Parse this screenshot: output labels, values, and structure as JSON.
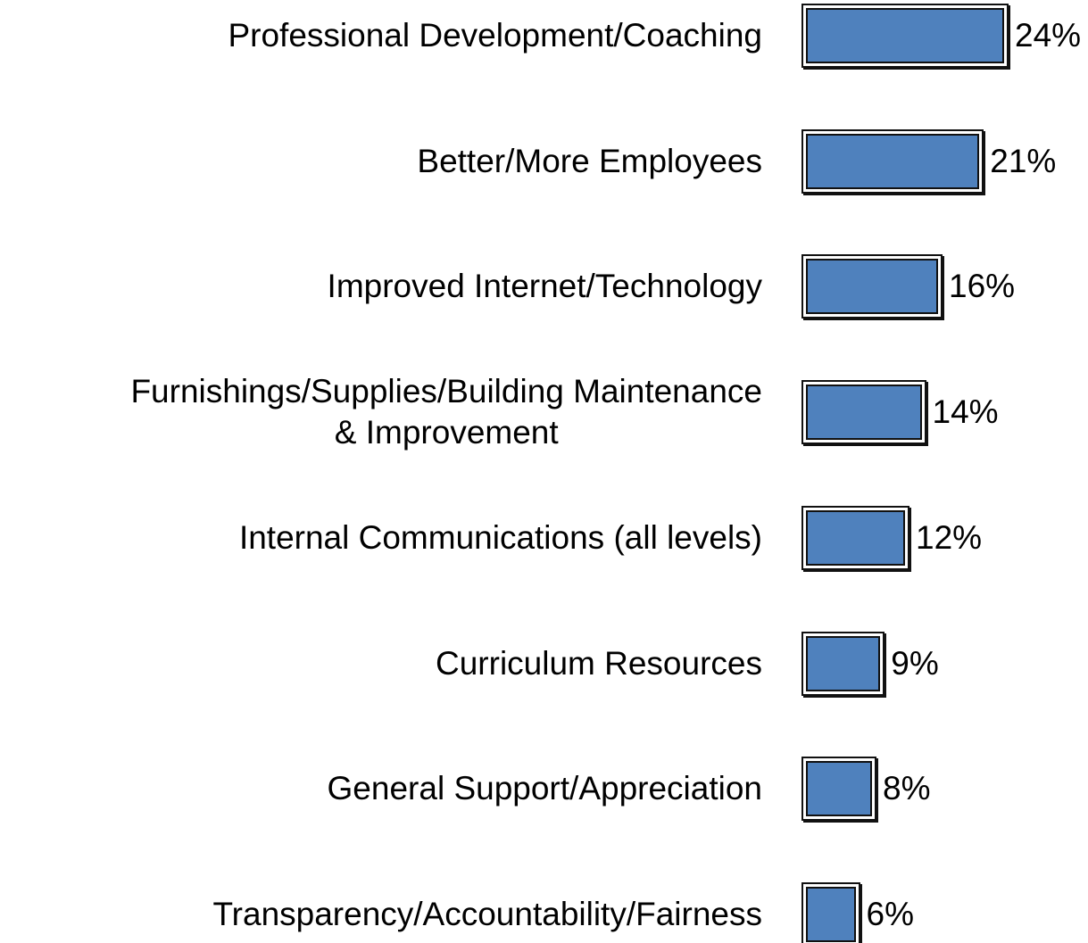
{
  "chart_data": {
    "type": "bar",
    "orientation": "horizontal",
    "categories": [
      "Professional Development/Coaching",
      "Better/More Employees",
      "Improved Internet/Technology",
      "Furnishings/Supplies/Building Maintenance\n& Improvement",
      "Internal Communications (all levels)",
      "Curriculum Resources",
      "General Support/Appreciation",
      "Transparency/Accountability/Fairness"
    ],
    "values": [
      24,
      21,
      16,
      14,
      12,
      9,
      8,
      6
    ],
    "value_labels": [
      "24%",
      "21%",
      "16%",
      "14%",
      "12%",
      "9%",
      "8%",
      "6%"
    ],
    "color": "#4f81bd"
  }
}
